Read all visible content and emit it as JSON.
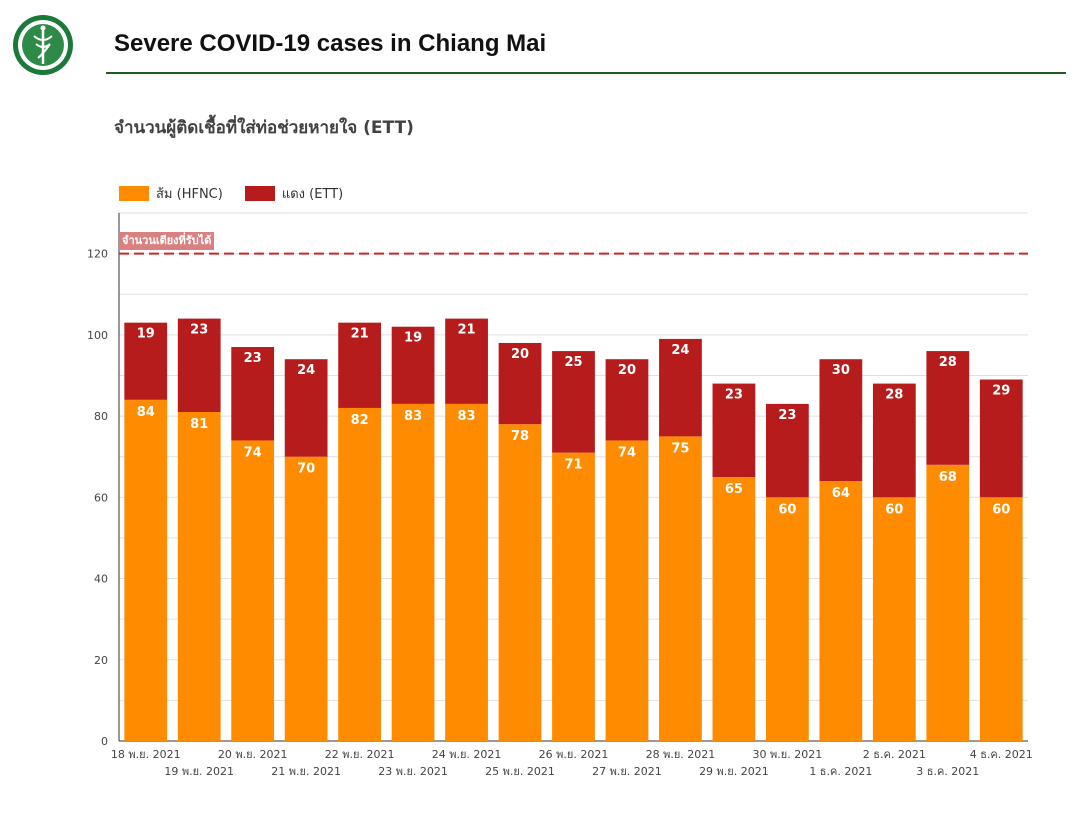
{
  "header": {
    "title": "Severe COVID-19 cases in Chiang Mai",
    "subtitle": "จำนวนผู้ติดเชื้อที่ใส่ท่อช่วยหายใจ (ETT)"
  },
  "colors": {
    "orange": "#ff8c00",
    "red": "#b71c1c",
    "capacity_line": "#c62828",
    "capacity_label_bg": "#d98181",
    "rule": "#1b5e20"
  },
  "chart_data": {
    "type": "bar",
    "stacked": true,
    "title": "Severe COVID-19 cases in Chiang Mai",
    "subtitle": "จำนวนผู้ติดเชื้อที่ใส่ท่อช่วยหายใจ (ETT)",
    "categories": [
      "18 พ.ย. 2021",
      "19 พ.ย. 2021",
      "20 พ.ย. 2021",
      "21 พ.ย. 2021",
      "22 พ.ย. 2021",
      "23 พ.ย. 2021",
      "24 พ.ย. 2021",
      "25 พ.ย. 2021",
      "26 พ.ย. 2021",
      "27 พ.ย. 2021",
      "28 พ.ย. 2021",
      "29 พ.ย. 2021",
      "30 พ.ย. 2021",
      "1 ธ.ค. 2021",
      "2 ธ.ค. 2021",
      "3 ธ.ค. 2021",
      "4 ธ.ค. 2021"
    ],
    "series": [
      {
        "name": "ส้ม (HFNC)",
        "color": "#ff8c00",
        "values": [
          84,
          81,
          74,
          70,
          82,
          83,
          83,
          78,
          71,
          74,
          75,
          65,
          60,
          64,
          60,
          68,
          60
        ]
      },
      {
        "name": "แดง (ETT)",
        "color": "#b71c1c",
        "values": [
          19,
          23,
          23,
          24,
          21,
          19,
          21,
          20,
          25,
          20,
          24,
          23,
          23,
          30,
          28,
          28,
          29
        ]
      }
    ],
    "ylim": [
      0,
      130
    ],
    "yticks": [
      0,
      20,
      40,
      60,
      80,
      100,
      120
    ],
    "reference_line": {
      "value": 120,
      "label": "จำนวนเตียงที่รับได้",
      "style": "dashed"
    },
    "legend_position": "top-left",
    "grid": true
  }
}
